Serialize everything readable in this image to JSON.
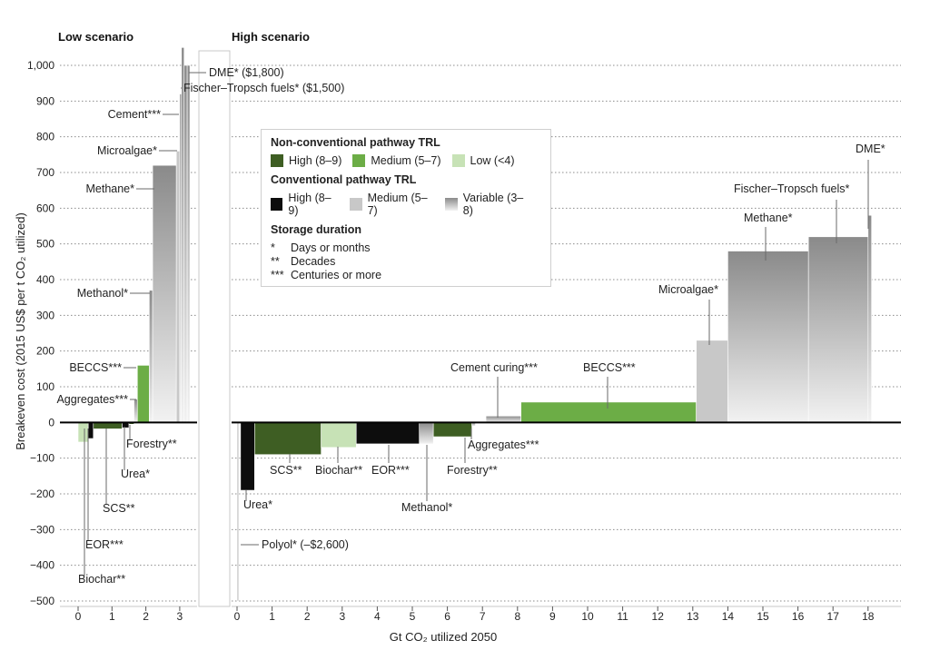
{
  "chart_data": {
    "type": "bar",
    "ylabel": "Breakeven cost (2015 US$ per t CO₂ utilized)",
    "xlabel": "Gt CO₂ utilized 2050",
    "ylim": [
      -500,
      1000
    ],
    "yticks": [
      -500,
      -400,
      -300,
      -200,
      -100,
      0,
      100,
      200,
      300,
      400,
      500,
      600,
      700,
      800,
      900,
      1000
    ],
    "yticklabels": [
      "−500",
      "−400",
      "−300",
      "−200",
      "−100",
      "0",
      "100",
      "200",
      "300",
      "400",
      "500",
      "600",
      "700",
      "800",
      "900",
      "1,000"
    ],
    "grid": "dotted horizontal",
    "panels": [
      {
        "title": "Low scenario",
        "xlim": [
          -0.3,
          3.5
        ],
        "xticks": [
          0,
          1,
          2,
          3
        ],
        "bars": [
          {
            "name": "Biochar**",
            "x0": 0.0,
            "x1": 0.3,
            "value": -55,
            "color": "light_green"
          },
          {
            "name": "EOR***",
            "x0": 0.3,
            "x1": 0.45,
            "value": -45,
            "color": "black"
          },
          {
            "name": "SCS**",
            "x0": 0.45,
            "x1": 1.3,
            "value": -18,
            "color": "dark_green"
          },
          {
            "name": "Urea*",
            "x0": 1.3,
            "x1": 1.5,
            "value": -15,
            "color": "black"
          },
          {
            "name": "Forestry**",
            "x0": 1.5,
            "x1": 1.65,
            "value": -5,
            "color": "dark_green"
          },
          {
            "name": "Aggregates***",
            "x0": 1.65,
            "x1": 1.75,
            "value": 65,
            "color": "gradient"
          },
          {
            "name": "BECCS***",
            "x0": 1.75,
            "x1": 2.1,
            "value": 160,
            "color": "medium_green"
          },
          {
            "name": "Methanol*",
            "x0": 2.1,
            "x1": 2.2,
            "value": 370,
            "color": "gradient"
          },
          {
            "name": "Methane*",
            "x0": 2.2,
            "x1": 2.9,
            "value": 720,
            "color": "gradient"
          },
          {
            "name": "Microalgae*",
            "x0": 2.9,
            "x1": 3.0,
            "value": 760,
            "color": "light_grey"
          },
          {
            "name": "Cement***",
            "x0": 3.0,
            "x1": 3.05,
            "value": 920,
            "color": "gradient"
          },
          {
            "name": "Fischer–Tropsch fuels* ($1,500)",
            "x0": 3.05,
            "x1": 3.13,
            "value": 1050,
            "color": "gradient"
          },
          {
            "name": "DME* ($1,800)",
            "x0": 3.13,
            "x1": 3.22,
            "value": 1000,
            "color": "gradient"
          },
          {
            "name": "",
            "x0": 3.22,
            "x1": 3.3,
            "value": 1000,
            "color": "gradient"
          }
        ]
      },
      {
        "title": "High scenario",
        "xlim": [
          -0.2,
          19.2
        ],
        "xticks": [
          0,
          1,
          2,
          3,
          4,
          5,
          6,
          7,
          8,
          9,
          10,
          11,
          12,
          13,
          14,
          15,
          16,
          17,
          18
        ],
        "bars": [
          {
            "name": "Polyol* (–$2,600)",
            "x0": 0.0,
            "x1": 0.05,
            "value": -500,
            "color": "light_grey"
          },
          {
            "name": "Urea*",
            "x0": 0.1,
            "x1": 0.5,
            "value": -190,
            "color": "black"
          },
          {
            "name": "SCS**",
            "x0": 0.5,
            "x1": 2.4,
            "value": -90,
            "color": "dark_green"
          },
          {
            "name": "Biochar**",
            "x0": 2.4,
            "x1": 3.4,
            "value": -70,
            "color": "light_green"
          },
          {
            "name": "EOR***",
            "x0": 3.4,
            "x1": 5.2,
            "value": -60,
            "color": "black"
          },
          {
            "name": "Methanol*",
            "x0": 5.2,
            "x1": 5.6,
            "value": -60,
            "color": "gradient"
          },
          {
            "name": "Forestry**",
            "x0": 5.6,
            "x1": 6.7,
            "value": -40,
            "color": "dark_green"
          },
          {
            "name": "Aggregates***",
            "x0": 6.7,
            "x1": 6.8,
            "value": -10,
            "color": "gradient"
          },
          {
            "name": "Cement curing***",
            "x0": 7.1,
            "x1": 8.1,
            "value": 18,
            "color": "gradient"
          },
          {
            "name": "BECCS***",
            "x0": 8.1,
            "x1": 13.1,
            "value": 57,
            "color": "medium_green"
          },
          {
            "name": "Microalgae*",
            "x0": 13.1,
            "x1": 14.0,
            "value": 230,
            "color": "light_grey"
          },
          {
            "name": "Methane*",
            "x0": 14.0,
            "x1": 16.3,
            "value": 480,
            "color": "gradient"
          },
          {
            "name": "Fischer–Tropsch fuels*",
            "x0": 16.3,
            "x1": 18.0,
            "value": 520,
            "color": "gradient"
          },
          {
            "name": "DME*",
            "x0": 18.0,
            "x1": 18.1,
            "value": 580,
            "color": "gradient"
          }
        ]
      }
    ],
    "legend": {
      "placement": "center",
      "non_conventional_title": "Non-conventional pathway TRL",
      "non_conventional": [
        {
          "label": "High (8–9)",
          "color": "dark_green"
        },
        {
          "label": "Medium (5–7)",
          "color": "medium_green"
        },
        {
          "label": "Low (<4)",
          "color": "light_green"
        }
      ],
      "conventional_title": "Conventional pathway TRL",
      "conventional": [
        {
          "label": "High (8–9)",
          "color": "black"
        },
        {
          "label": "Medium (5–7)",
          "color": "light_grey"
        },
        {
          "label": "Variable (3–8)",
          "color": "gradient"
        }
      ],
      "storage_title": "Storage duration",
      "storage": [
        {
          "symbol": "*",
          "label": "Days or months"
        },
        {
          "symbol": "**",
          "label": "Decades"
        },
        {
          "symbol": "***",
          "label": "Centuries or more"
        }
      ]
    }
  },
  "colors": {
    "dark_green": "#3e5e23",
    "medium_green": "#6cad46",
    "light_green": "#c7e2b6",
    "black": "#0d0d0d",
    "light_grey": "#c8c8c8",
    "gradient_top": "#8a8a8a",
    "gradient_bottom": "#f2f2f2",
    "axis": "#000000",
    "grid": "#8c8c8c"
  }
}
